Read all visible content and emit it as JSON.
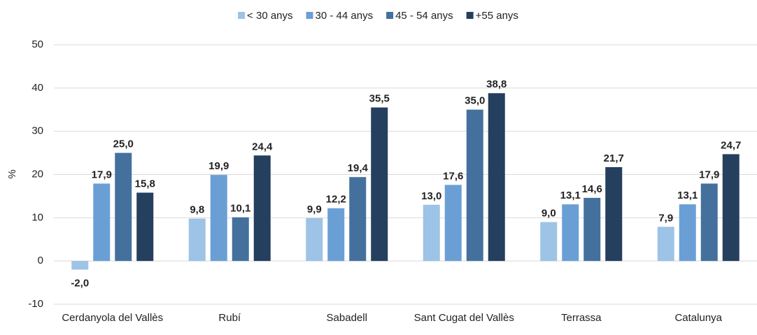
{
  "chart_data": {
    "type": "bar",
    "y_label": "%",
    "categories": [
      "Cerdanyola del Vallès",
      "Rubí",
      "Sabadell",
      "Sant Cugat del Vallès",
      "Terrassa",
      "Catalunya"
    ],
    "series": [
      {
        "name": "< 30 anys",
        "color": "#9dc3e6",
        "values": [
          -2.0,
          9.8,
          9.9,
          13.0,
          9.0,
          7.9
        ],
        "value_labels": [
          "-2,0",
          "9,8",
          "9,9",
          "13,0",
          "9,0",
          "7,9"
        ]
      },
      {
        "name": "30 - 44 anys",
        "color": "#6a9fd6",
        "values": [
          17.9,
          19.9,
          12.2,
          17.6,
          13.1,
          13.1
        ],
        "value_labels": [
          "17,9",
          "19,9",
          "12,2",
          "17,6",
          "13,1",
          "13,1"
        ]
      },
      {
        "name": "45 - 54 anys",
        "color": "#44709d",
        "values": [
          25.0,
          10.1,
          19.4,
          35.0,
          14.6,
          17.9
        ],
        "value_labels": [
          "25,0",
          "10,1",
          "19,4",
          "35,0",
          "14,6",
          "17,9"
        ]
      },
      {
        "name": "+55 anys",
        "color": "#253f5e",
        "values": [
          15.8,
          24.4,
          35.5,
          38.8,
          21.7,
          24.7
        ],
        "value_labels": [
          "15,8",
          "24,4",
          "35,5",
          "38,8",
          "21,7",
          "24,7"
        ]
      }
    ],
    "ylim": [
      -10,
      50
    ],
    "yticks": [
      -10,
      0,
      10,
      20,
      30,
      40,
      50
    ],
    "grid": true,
    "legend": "top"
  }
}
